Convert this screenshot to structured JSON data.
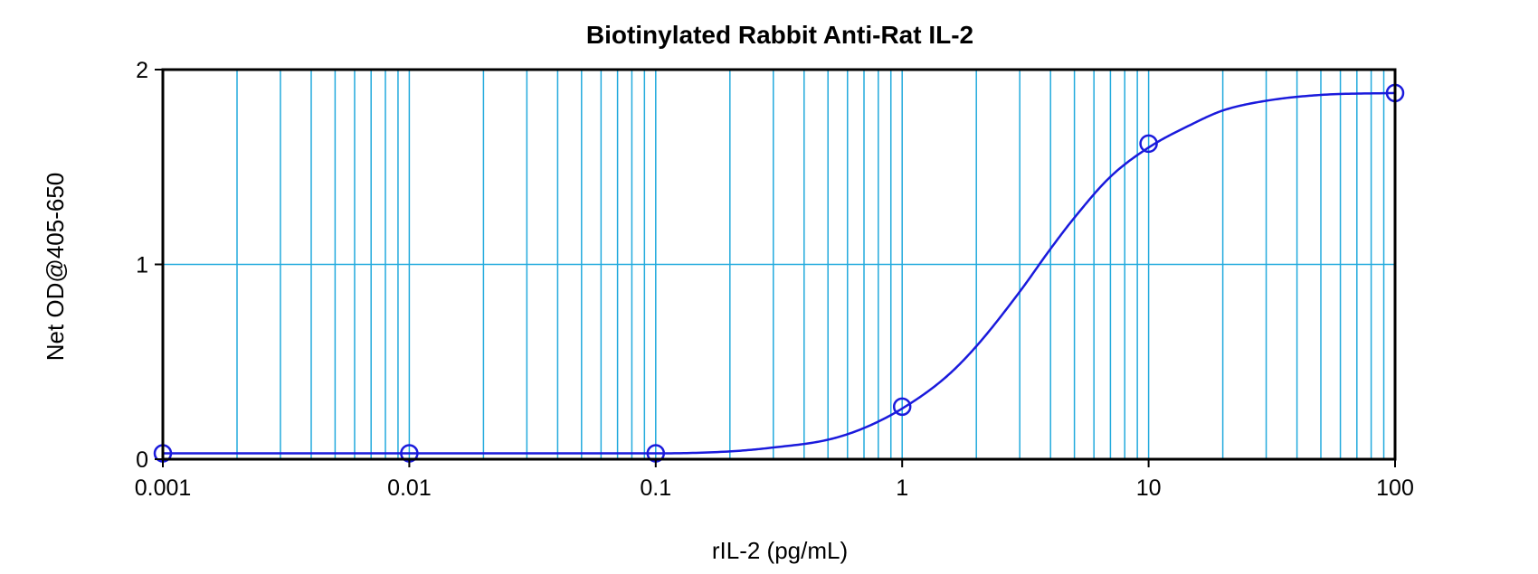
{
  "chart_data": {
    "type": "scatter",
    "title": "Biotinylated Rabbit Anti-Rat IL-2",
    "xlabel": "rIL-2 (pg/mL)",
    "ylabel": "Net OD@405-650",
    "x_scale": "log",
    "xlim": [
      0.001,
      100
    ],
    "ylim": [
      0,
      2
    ],
    "x_ticks": [
      {
        "value": 0.001,
        "label": "0.001"
      },
      {
        "value": 0.01,
        "label": "0.01"
      },
      {
        "value": 0.1,
        "label": "0.1"
      },
      {
        "value": 1,
        "label": "1"
      },
      {
        "value": 10,
        "label": "10"
      },
      {
        "value": 100,
        "label": "100"
      }
    ],
    "y_ticks": [
      {
        "value": 0,
        "label": "0"
      },
      {
        "value": 1,
        "label": "1"
      },
      {
        "value": 2,
        "label": "2"
      }
    ],
    "grid": true,
    "colors": {
      "grid": "#22aadd",
      "series": "#1a1adc",
      "axes": "#000000"
    },
    "series": [
      {
        "points": [
          {
            "x": 0.001,
            "y": 0.03
          },
          {
            "x": 0.01,
            "y": 0.03
          },
          {
            "x": 0.1,
            "y": 0.03
          },
          {
            "x": 1,
            "y": 0.27
          },
          {
            "x": 10,
            "y": 1.62
          },
          {
            "x": 100,
            "y": 1.88
          }
        ]
      }
    ],
    "fit_curve": {
      "x": [
        0.001,
        0.01,
        0.1,
        0.2,
        0.3,
        0.5,
        0.7,
        1,
        1.5,
        2,
        3,
        4,
        5,
        7,
        10,
        15,
        20,
        30,
        50,
        100
      ],
      "y": [
        0.03,
        0.03,
        0.03,
        0.04,
        0.06,
        0.1,
        0.16,
        0.26,
        0.42,
        0.58,
        0.86,
        1.08,
        1.24,
        1.45,
        1.6,
        1.72,
        1.79,
        1.84,
        1.87,
        1.88
      ]
    }
  }
}
